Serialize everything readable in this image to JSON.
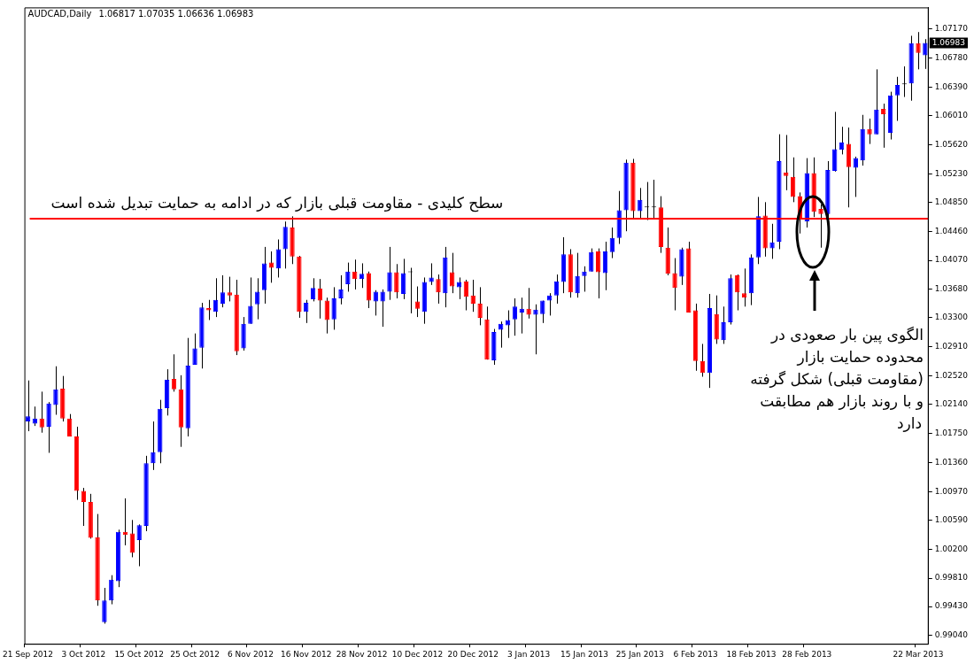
{
  "chart_data": {
    "type": "candlestick",
    "title": "AUDCAD,Daily",
    "subtitle": "1.06817 1.07035 1.06636 1.06983",
    "categories": [
      "21 Sep 2012",
      null,
      null,
      null,
      null,
      null,
      null,
      null,
      "3 Oct 2012",
      null,
      null,
      null,
      null,
      null,
      null,
      null,
      "15 Oct 2012",
      null,
      null,
      null,
      null,
      null,
      null,
      null,
      "25 Oct 2012",
      null,
      null,
      null,
      null,
      null,
      null,
      null,
      "6 Nov 2012",
      null,
      null,
      null,
      null,
      null,
      null,
      null,
      "16 Nov 2012",
      null,
      null,
      null,
      null,
      null,
      null,
      null,
      "28 Nov 2012",
      null,
      null,
      null,
      null,
      null,
      null,
      null,
      "10 Dec 2012",
      null,
      null,
      null,
      null,
      null,
      null,
      null,
      "20 Dec 2012",
      null,
      null,
      null,
      null,
      null,
      null,
      null,
      "3 Jan 2013",
      null,
      null,
      null,
      null,
      null,
      null,
      null,
      "15 Jan 2013",
      null,
      null,
      null,
      null,
      null,
      null,
      null,
      "25 Jan 2013",
      null,
      null,
      null,
      null,
      null,
      null,
      null,
      "6 Feb 2013",
      null,
      null,
      null,
      null,
      null,
      null,
      null,
      "18 Feb 2013",
      null,
      null,
      null,
      null,
      null,
      null,
      null,
      "28 Feb 2013",
      null,
      null,
      null,
      null,
      null,
      null,
      null,
      null,
      null,
      null,
      null,
      null,
      null,
      null,
      null,
      "22 Mar 2013",
      null
    ],
    "ohlc": [
      [
        1.0191,
        1.0246,
        1.0178,
        1.0198
      ],
      [
        1.0188,
        1.0211,
        1.0185,
        1.0195
      ],
      [
        1.0195,
        1.0231,
        1.0176,
        1.0183
      ],
      [
        1.0184,
        1.0217,
        1.0149,
        1.0215
      ],
      [
        1.0213,
        1.0265,
        1.02,
        1.0234
      ],
      [
        1.0235,
        1.0252,
        1.0191,
        1.0195
      ],
      [
        1.0195,
        1.0201,
        1.0171,
        1.0171
      ],
      [
        1.0171,
        1.0184,
        1.0086,
        1.0098
      ],
      [
        1.0098,
        1.0102,
        1.0051,
        1.0083
      ],
      [
        1.0083,
        1.0094,
        1.0034,
        1.0035
      ],
      [
        1.0036,
        1.0067,
        0.9944,
        0.9951
      ],
      [
        0.9922,
        0.9968,
        0.992,
        0.9951
      ],
      [
        0.9951,
        0.9985,
        0.9946,
        0.9979
      ],
      [
        0.9977,
        1.0046,
        0.9969,
        1.0043
      ],
      [
        1.0043,
        1.0088,
        1.0025,
        1.0039
      ],
      [
        1.0041,
        1.0059,
        1.0009,
        1.0015
      ],
      [
        1.0032,
        1.0053,
        0.9997,
        1.0052
      ],
      [
        1.0051,
        1.0145,
        1.0044,
        1.0135
      ],
      [
        1.0135,
        1.0191,
        1.0126,
        1.015
      ],
      [
        1.015,
        1.022,
        1.0135,
        1.0208
      ],
      [
        1.0209,
        1.0261,
        1.0199,
        1.0247
      ],
      [
        1.0248,
        1.0281,
        1.0231,
        1.0234
      ],
      [
        1.0234,
        1.0253,
        1.0157,
        1.0183
      ],
      [
        1.0182,
        1.0303,
        1.0171,
        1.0266
      ],
      [
        1.0267,
        1.0309,
        1.0267,
        1.0289
      ],
      [
        1.029,
        1.035,
        1.0262,
        1.0344
      ],
      [
        1.0343,
        1.0354,
        1.0327,
        1.034
      ],
      [
        1.0338,
        1.0383,
        1.0331,
        1.0354
      ],
      [
        1.0349,
        1.0387,
        1.0344,
        1.0364
      ],
      [
        1.0364,
        1.0385,
        1.0352,
        1.036
      ],
      [
        1.0361,
        1.0381,
        1.028,
        1.0285
      ],
      [
        1.0289,
        1.0331,
        1.0286,
        1.0322
      ],
      [
        1.0322,
        1.0384,
        1.0322,
        1.0346
      ],
      [
        1.0348,
        1.0383,
        1.0328,
        1.0365
      ],
      [
        1.0367,
        1.0425,
        1.0349,
        1.0403
      ],
      [
        1.0404,
        1.0419,
        1.0377,
        1.0397
      ],
      [
        1.0396,
        1.0435,
        1.0384,
        1.0422
      ],
      [
        1.0422,
        1.0459,
        1.0396,
        1.0452
      ],
      [
        1.0451,
        1.0466,
        1.0402,
        1.0412
      ],
      [
        1.0412,
        1.0413,
        1.033,
        1.0338
      ],
      [
        1.0338,
        1.0354,
        1.0323,
        1.035
      ],
      [
        1.0355,
        1.0383,
        1.0352,
        1.037
      ],
      [
        1.0369,
        1.0382,
        1.0329,
        1.0353
      ],
      [
        1.0353,
        1.0357,
        1.0309,
        1.0327
      ],
      [
        1.0328,
        1.0371,
        1.0314,
        1.0356
      ],
      [
        1.0356,
        1.0387,
        1.0348,
        1.0368
      ],
      [
        1.0375,
        1.0404,
        1.0365,
        1.0392
      ],
      [
        1.0392,
        1.0408,
        1.0368,
        1.0382
      ],
      [
        1.0382,
        1.0403,
        1.037,
        1.0389
      ],
      [
        1.039,
        1.0392,
        1.0343,
        1.0353
      ],
      [
        1.0352,
        1.0367,
        1.0333,
        1.0365
      ],
      [
        1.0352,
        1.0368,
        1.0318,
        1.0365
      ],
      [
        1.0365,
        1.0425,
        1.0354,
        1.0391
      ],
      [
        1.0391,
        1.0402,
        1.0356,
        1.0364
      ],
      [
        1.0362,
        1.0409,
        1.0355,
        1.039
      ],
      [
        1.0391,
        1.0397,
        1.0336,
        1.0391
      ],
      [
        1.0352,
        1.0372,
        1.0331,
        1.0342
      ],
      [
        1.0338,
        1.0384,
        1.0322,
        1.0378
      ],
      [
        1.0378,
        1.0403,
        1.0374,
        1.0384
      ],
      [
        1.0382,
        1.0388,
        1.0349,
        1.0364
      ],
      [
        1.0363,
        1.0425,
        1.0344,
        1.0411
      ],
      [
        1.0391,
        1.0417,
        1.0363,
        1.0372
      ],
      [
        1.0371,
        1.0384,
        1.0355,
        1.0378
      ],
      [
        1.0379,
        1.0381,
        1.034,
        1.0358
      ],
      [
        1.036,
        1.0381,
        1.0338,
        1.0349
      ],
      [
        1.0349,
        1.0371,
        1.032,
        1.033
      ],
      [
        1.0328,
        1.0345,
        1.0274,
        1.0274
      ],
      [
        1.0273,
        1.0315,
        1.0267,
        1.0311
      ],
      [
        1.0314,
        1.0325,
        1.029,
        1.0322
      ],
      [
        1.032,
        1.034,
        1.0303,
        1.0327
      ],
      [
        1.0328,
        1.0356,
        1.0306,
        1.0345
      ],
      [
        1.0337,
        1.0357,
        1.0309,
        1.0342
      ],
      [
        1.0342,
        1.037,
        1.0329,
        1.0334
      ],
      [
        1.0334,
        1.0348,
        1.0281,
        1.0341
      ],
      [
        1.0335,
        1.0353,
        1.0323,
        1.0353
      ],
      [
        1.0353,
        1.0363,
        1.0333,
        1.036
      ],
      [
        1.036,
        1.0388,
        1.0349,
        1.0379
      ],
      [
        1.0378,
        1.0438,
        1.0363,
        1.0415
      ],
      [
        1.0415,
        1.0422,
        1.0357,
        1.0364
      ],
      [
        1.0363,
        1.0417,
        1.0357,
        1.0386
      ],
      [
        1.0386,
        1.0399,
        1.0365,
        1.0392
      ],
      [
        1.0392,
        1.0423,
        1.0392,
        1.0418
      ],
      [
        1.0419,
        1.0423,
        1.0356,
        1.0391
      ],
      [
        1.039,
        1.0432,
        1.0367,
        1.0419
      ],
      [
        1.0418,
        1.0451,
        1.041,
        1.0437
      ],
      [
        1.0437,
        1.05,
        1.0429,
        1.0474
      ],
      [
        1.0474,
        1.0542,
        1.0446,
        1.0538
      ],
      [
        1.0538,
        1.0543,
        1.0464,
        1.0473
      ],
      [
        1.0473,
        1.0504,
        1.0463,
        1.0488
      ],
      [
        1.0478,
        1.0512,
        1.0461,
        1.0478
      ],
      [
        1.0478,
        1.0515,
        1.0463,
        1.0478
      ],
      [
        1.0478,
        1.0493,
        1.0417,
        1.0425
      ],
      [
        1.0424,
        1.0451,
        1.0387,
        1.0389
      ],
      [
        1.039,
        1.041,
        1.034,
        1.037
      ],
      [
        1.0385,
        1.0424,
        1.0374,
        1.0422
      ],
      [
        1.0423,
        1.0432,
        1.0337,
        1.0337
      ],
      [
        1.034,
        1.0349,
        1.0259,
        1.0272
      ],
      [
        1.0272,
        1.0295,
        1.0251,
        1.0256
      ],
      [
        1.0256,
        1.0362,
        1.0236,
        1.0343
      ],
      [
        1.0335,
        1.036,
        1.0295,
        1.0301
      ],
      [
        1.03,
        1.0345,
        1.0295,
        1.0324
      ],
      [
        1.0324,
        1.0388,
        1.0321,
        1.0383
      ],
      [
        1.0387,
        1.0388,
        1.034,
        1.0364
      ],
      [
        1.0363,
        1.0396,
        1.0345,
        1.0357
      ],
      [
        1.0363,
        1.0415,
        1.0347,
        1.0411
      ],
      [
        1.0411,
        1.0492,
        1.0402,
        1.0466
      ],
      [
        1.0467,
        1.0485,
        1.0412,
        1.0423
      ],
      [
        1.0423,
        1.0456,
        1.0409,
        1.0431
      ],
      [
        1.0432,
        1.0576,
        1.0422,
        1.054
      ],
      [
        1.0525,
        1.0575,
        1.0501,
        1.052
      ],
      [
        1.0519,
        1.0545,
        1.0485,
        1.0492
      ],
      [
        1.0493,
        1.0498,
        1.0443,
        1.0463
      ],
      [
        1.0459,
        1.0544,
        1.0451,
        1.0524
      ],
      [
        1.0524,
        1.0545,
        1.0465,
        1.0472
      ],
      [
        1.0476,
        1.0482,
        1.0424,
        1.0469
      ],
      [
        1.0469,
        1.054,
        1.0463,
        1.0528
      ],
      [
        1.0527,
        1.0606,
        1.0526,
        1.0556
      ],
      [
        1.0555,
        1.0586,
        1.0549,
        1.0565
      ],
      [
        1.0563,
        1.0585,
        1.0478,
        1.0532
      ],
      [
        1.0531,
        1.0546,
        1.0492,
        1.0544
      ],
      [
        1.0541,
        1.0602,
        1.0534,
        1.0583
      ],
      [
        1.0583,
        1.0597,
        1.0563,
        1.0576
      ],
      [
        1.0576,
        1.0663,
        1.0576,
        1.0609
      ],
      [
        1.061,
        1.0617,
        1.0558,
        1.0603
      ],
      [
        1.0578,
        1.0633,
        1.0569,
        1.0628
      ],
      [
        1.0628,
        1.0653,
        1.0594,
        1.0642
      ],
      [
        1.0643,
        1.0667,
        1.0626,
        1.0643
      ],
      [
        1.0644,
        1.0708,
        1.0621,
        1.0698
      ],
      [
        1.0698,
        1.0713,
        1.0663,
        1.0685
      ],
      [
        1.06817,
        1.07035,
        1.06636,
        1.06983
      ]
    ],
    "colors": [
      "#0000ff",
      "#0000ff",
      "#ff0000",
      "#0000ff",
      "#0000ff",
      "#ff0000",
      "#ff0000",
      "#ff0000",
      "#ff0000",
      "#ff0000",
      "#ff0000",
      "#0000ff",
      "#0000ff",
      "#0000ff",
      "#ff0000",
      "#ff0000",
      "#0000ff",
      "#0000ff",
      "#0000ff",
      "#0000ff",
      "#0000ff",
      "#ff0000",
      "#ff0000",
      "#0000ff",
      "#0000ff",
      "#0000ff",
      "#ff0000",
      "#0000ff",
      "#0000ff",
      "#ff0000",
      "#ff0000",
      "#0000ff",
      "#0000ff",
      "#0000ff",
      "#0000ff",
      "#ff0000",
      "#0000ff",
      "#0000ff",
      "#ff0000",
      "#ff0000",
      "#0000ff",
      "#0000ff",
      "#ff0000",
      "#ff0000",
      "#0000ff",
      "#0000ff",
      "#0000ff",
      "#ff0000",
      "#0000ff",
      "#ff0000",
      "#0000ff",
      "#0000ff",
      "#0000ff",
      "#ff0000",
      "#0000ff",
      "#000000",
      "#ff0000",
      "#0000ff",
      "#0000ff",
      "#ff0000",
      "#0000ff",
      "#ff0000",
      "#0000ff",
      "#ff0000",
      "#ff0000",
      "#ff0000",
      "#ff0000",
      "#0000ff",
      "#0000ff",
      "#0000ff",
      "#0000ff",
      "#0000ff",
      "#ff0000",
      "#0000ff",
      "#0000ff",
      "#0000ff",
      "#0000ff",
      "#0000ff",
      "#ff0000",
      "#0000ff",
      "#0000ff",
      "#0000ff",
      "#ff0000",
      "#0000ff",
      "#0000ff",
      "#0000ff",
      "#0000ff",
      "#ff0000",
      "#0000ff",
      "#000000",
      "#000000",
      "#ff0000",
      "#ff0000",
      "#ff0000",
      "#0000ff",
      "#ff0000",
      "#ff0000",
      "#ff0000",
      "#0000ff",
      "#ff0000",
      "#0000ff",
      "#0000ff",
      "#ff0000",
      "#ff0000",
      "#0000ff",
      "#0000ff",
      "#ff0000",
      "#0000ff",
      "#0000ff",
      "#ff0000",
      "#ff0000",
      "#ff0000",
      "#0000ff",
      "#ff0000",
      "#ff0000",
      "#0000ff",
      "#0000ff",
      "#0000ff",
      "#ff0000",
      "#0000ff",
      "#0000ff",
      "#ff0000",
      "#0000ff",
      "#ff0000",
      "#0000ff",
      "#0000ff",
      "#000000",
      "#0000ff",
      "#ff0000",
      "#0000ff"
    ],
    "ylim": [
      0.9893,
      1.0746
    ],
    "yticks": [
      {
        "value": 1.0717,
        "label": "1.07170"
      },
      {
        "value": 1.0678,
        "label": "1.06780"
      },
      {
        "value": 1.0639,
        "label": "1.06390"
      },
      {
        "value": 1.0601,
        "label": "1.06010"
      },
      {
        "value": 1.0562,
        "label": "1.05620"
      },
      {
        "value": 1.0523,
        "label": "1.05230"
      },
      {
        "value": 1.0485,
        "label": "1.04850"
      },
      {
        "value": 1.0446,
        "label": "1.04460"
      },
      {
        "value": 1.0407,
        "label": "1.04070"
      },
      {
        "value": 1.0368,
        "label": "1.03680"
      },
      {
        "value": 1.033,
        "label": "1.03300"
      },
      {
        "value": 1.0291,
        "label": "1.02910"
      },
      {
        "value": 1.0252,
        "label": "1.02520"
      },
      {
        "value": 1.0214,
        "label": "1.02140"
      },
      {
        "value": 1.0175,
        "label": "1.01750"
      },
      {
        "value": 1.0136,
        "label": "1.01360"
      },
      {
        "value": 1.0097,
        "label": "1.00970"
      },
      {
        "value": 1.0059,
        "label": "1.00590"
      },
      {
        "value": 1.002,
        "label": "1.00200"
      },
      {
        "value": 0.9981,
        "label": "0.99810"
      },
      {
        "value": 0.9943,
        "label": "0.99430"
      },
      {
        "value": 0.9904,
        "label": "0.99040"
      }
    ],
    "ref_lines": [
      {
        "axis": "y",
        "value": 1.0463,
        "label": "سطح کلیدی - مقاومت قبلی بازار که در ادامه به حمایت تبدیل شده است",
        "color": "#ff0000"
      }
    ],
    "annotations": [
      "1.06983",
      "الگوی پین بار صعودی در\nمحدوده حمایت بازار\n(مقاومت قبلی) شکل گرفته\nو با روند بازار هم مطابقت\nدارد"
    ]
  }
}
